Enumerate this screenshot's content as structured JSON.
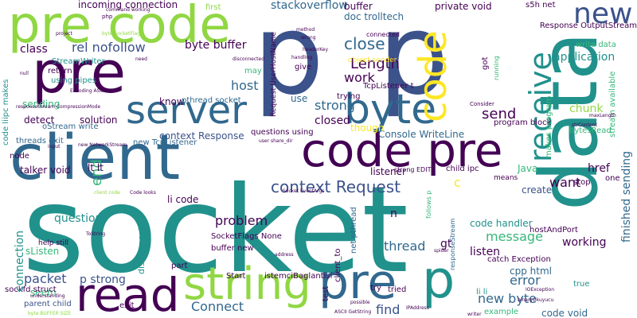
{
  "palette": {
    "dark_purple": "#440154",
    "indigo": "#3b528b",
    "blue": "#31688e",
    "teal": "#21918c",
    "green": "#35b779",
    "yellow_green": "#90d743",
    "yellow": "#fde725"
  },
  "words": [
    {
      "text": "socket",
      "color": "#21918c",
      "vertical": false
    },
    {
      "text": "p",
      "color": "#3b528b",
      "vertical": false
    },
    {
      "text": "data",
      "color": "#21918c",
      "vertical": true
    },
    {
      "text": "client",
      "color": "#31688e",
      "vertical": false
    },
    {
      "text": "code pre",
      "color": "#440154",
      "vertical": false
    },
    {
      "text": "pre code",
      "color": "#90d743",
      "vertical": false
    },
    {
      "text": "pre",
      "color": "#440154",
      "vertical": false
    },
    {
      "text": "p",
      "color": "#3b528b",
      "vertical": false
    },
    {
      "text": "server",
      "color": "#31688e",
      "vertical": false
    },
    {
      "text": "byte",
      "color": "#31688e",
      "vertical": false
    },
    {
      "text": "read",
      "color": "#440154",
      "vertical": false
    },
    {
      "text": "string",
      "color": "#90d743",
      "vertical": false
    },
    {
      "text": "pre",
      "color": "#31688e",
      "vertical": false
    },
    {
      "text": "p",
      "color": "#21918c",
      "vertical": false
    },
    {
      "text": "code",
      "color": "#fde725",
      "vertical": true
    },
    {
      "text": "new",
      "color": "#3b528b",
      "vertical": false
    },
    {
      "text": "receive",
      "color": "#21918c",
      "vertical": true
    },
    {
      "text": "context Request",
      "color": "#3b528b",
      "vertical": false
    },
    {
      "text": "close",
      "color": "#31688e",
      "vertical": false
    },
    {
      "text": "Length",
      "color": "#440154",
      "vertical": false
    },
    {
      "text": "send",
      "color": "#440154",
      "vertical": false
    },
    {
      "text": "application",
      "color": "#21918c",
      "vertical": false
    },
    {
      "text": "chunk",
      "color": "#90d743",
      "vertical": false
    },
    {
      "text": "message",
      "color": "#35b779",
      "vertical": false
    },
    {
      "text": "problem",
      "color": "#440154",
      "vertical": false
    },
    {
      "text": "Connect",
      "color": "#31688e",
      "vertical": false
    },
    {
      "text": "packet",
      "color": "#3b528b",
      "vertical": false
    },
    {
      "text": "find",
      "color": "#3b528b",
      "vertical": false
    },
    {
      "text": "work",
      "color": "#440154",
      "vertical": false
    },
    {
      "text": "strong",
      "color": "#31688e",
      "vertical": false
    },
    {
      "text": "host",
      "color": "#31688e",
      "vertical": false
    },
    {
      "text": "rel nofollow",
      "color": "#3b528b",
      "vertical": false
    },
    {
      "text": "stackoverflow",
      "color": "#31688e",
      "vertical": false
    },
    {
      "text": "incoming connection",
      "color": "#440154",
      "vertical": false
    },
    {
      "text": "buffer",
      "color": "#440154",
      "vertical": false
    },
    {
      "text": "doc trolltech",
      "color": "#31688e",
      "vertical": false
    },
    {
      "text": "private void",
      "color": "#440154",
      "vertical": false
    },
    {
      "text": "byte buffer",
      "color": "#440154",
      "vertical": false
    },
    {
      "text": "class",
      "color": "#440154",
      "vertical": false
    },
    {
      "text": "end",
      "color": "#35b779",
      "vertical": true
    },
    {
      "text": "lt lt",
      "color": "#440154",
      "vertical": false
    },
    {
      "text": "li code",
      "color": "#440154",
      "vertical": false
    },
    {
      "text": "question",
      "color": "#21918c",
      "vertical": false
    },
    {
      "text": "p strong",
      "color": "#3b528b",
      "vertical": false
    },
    {
      "text": "thread",
      "color": "#31688e",
      "vertical": false
    },
    {
      "text": "listen",
      "color": "#440154",
      "vertical": false
    },
    {
      "text": "code handler",
      "color": "#21918c",
      "vertical": false
    },
    {
      "text": "error",
      "color": "#31688e",
      "vertical": false
    },
    {
      "text": "new byte",
      "color": "#31688e",
      "vertical": false
    },
    {
      "text": "href",
      "color": "#440154",
      "vertical": false
    },
    {
      "text": "want",
      "color": "#440154",
      "vertical": false
    },
    {
      "text": "create",
      "color": "#3b528b",
      "vertical": false
    },
    {
      "text": "working",
      "color": "#440154",
      "vertical": false
    },
    {
      "text": "finished sending",
      "color": "#31688e",
      "vertical": true
    },
    {
      "text": "solution",
      "color": "#440154",
      "vertical": false
    },
    {
      "text": "detect",
      "color": "#440154",
      "vertical": false
    },
    {
      "text": "sending",
      "color": "#35b779",
      "vertical": false
    },
    {
      "text": "closed",
      "color": "#440154",
      "vertical": false
    },
    {
      "text": "Console WriteLine",
      "color": "#31688e",
      "vertical": false
    },
    {
      "text": "listener",
      "color": "#440154",
      "vertical": false
    },
    {
      "text": "Java",
      "color": "#35b779",
      "vertical": false
    },
    {
      "text": "though",
      "color": "#fde725",
      "vertical": false
    },
    {
      "text": "know",
      "color": "#440154",
      "vertical": false
    },
    {
      "text": "pthread socket",
      "color": "#31688e",
      "vertical": false
    },
    {
      "text": "use",
      "color": "#31688e",
      "vertical": false
    },
    {
      "text": "context Response",
      "color": "#3b528b",
      "vertical": false
    },
    {
      "text": "oStream write",
      "color": "#31688e",
      "vertical": false
    },
    {
      "text": "new TcpListener",
      "color": "#31688e",
      "vertical": false
    },
    {
      "text": "threads exit",
      "color": "#31688e",
      "vertical": false
    },
    {
      "text": "talker void",
      "color": "#440154",
      "vertical": false
    },
    {
      "text": "SocketFlags None",
      "color": "#440154",
      "vertical": false
    },
    {
      "text": "buffer new",
      "color": "#440154",
      "vertical": false
    },
    {
      "text": "Start",
      "color": "#440154",
      "vertical": false
    },
    {
      "text": "istemciBaglantisi",
      "color": "#440154",
      "vertical": false
    },
    {
      "text": "seem",
      "color": "#35b779",
      "vertical": false
    },
    {
      "text": "parent child",
      "color": "#3b528b",
      "vertical": false
    },
    {
      "text": "sListen",
      "color": "#35b779",
      "vertical": false
    },
    {
      "text": "sockfd struct",
      "color": "#440154",
      "vertical": false
    },
    {
      "text": "connection",
      "color": "#21918c",
      "vertical": true
    },
    {
      "text": "disconnect",
      "color": "#21918c",
      "vertical": true
    },
    {
      "text": "n",
      "color": "#440154",
      "vertical": false
    },
    {
      "text": "c",
      "color": "#fde725",
      "vertical": false
    },
    {
      "text": "gt",
      "color": "#440154",
      "vertical": false
    },
    {
      "text": "hostAndPort",
      "color": "#440154",
      "vertical": false
    },
    {
      "text": "catch Exception",
      "color": "#440154",
      "vertical": false
    },
    {
      "text": "cpp html",
      "color": "#31688e",
      "vertical": false
    },
    {
      "text": "li li",
      "color": "#21918c",
      "vertical": false
    },
    {
      "text": "code void",
      "color": "#31688e",
      "vertical": false
    },
    {
      "text": "true",
      "color": "#21918c",
      "vertical": false
    },
    {
      "text": "TcpListener t",
      "color": "#440154",
      "vertical": false
    },
    {
      "text": "trying",
      "color": "#440154",
      "vertical": false
    },
    {
      "text": "give",
      "color": "#440154",
      "vertical": false
    },
    {
      "text": "may",
      "color": "#35b779",
      "vertical": false
    },
    {
      "text": "return",
      "color": "#440154",
      "vertical": false
    },
    {
      "text": "using pipes",
      "color": "#21918c",
      "vertical": false
    },
    {
      "text": "ipc makes",
      "color": "#21918c",
      "vertical": true
    },
    {
      "text": "code li",
      "color": "#21918c",
      "vertical": true
    },
    {
      "text": "StreamWriter",
      "color": "#21918c",
      "vertical": false
    },
    {
      "text": "first",
      "color": "#90d743",
      "vertical": false
    },
    {
      "text": "node",
      "color": "#440154",
      "vertical": false
    },
    {
      "text": "s5h net",
      "color": "#440154",
      "vertical": false
    },
    {
      "text": "Response OutputStream",
      "color": "#440154",
      "vertical": false
    },
    {
      "text": "write data",
      "color": "#35b779",
      "vertical": false
    },
    {
      "text": "bytesRead",
      "color": "#35b779",
      "vertical": false
    },
    {
      "text": "stream available",
      "color": "#35b779",
      "vertical": true
    },
    {
      "text": "questions using",
      "color": "#440154",
      "vertical": false
    },
    {
      "text": "program block",
      "color": "#440154",
      "vertical": false
    },
    {
      "text": "object sender",
      "color": "#fde725",
      "vertical": false
    },
    {
      "text": "strong EDIT",
      "color": "#440154",
      "vertical": false
    },
    {
      "text": "child ipc",
      "color": "#440154",
      "vertical": false
    },
    {
      "text": "net pthread",
      "color": "#31688e",
      "vertical": true
    },
    {
      "text": "client_to",
      "color": "#440154",
      "vertical": true
    },
    {
      "text": "follows p",
      "color": "#35b779",
      "vertical": true
    },
    {
      "text": "Request UserHostName",
      "color": "#440154",
      "vertical": true
    },
    {
      "text": "running",
      "color": "#35b779",
      "vertical": true
    },
    {
      "text": "stop",
      "color": "#440154",
      "vertical": false
    },
    {
      "text": "one",
      "color": "#440154",
      "vertical": false
    },
    {
      "text": "test",
      "color": "#440154",
      "vertical": true
    },
    {
      "text": "try",
      "color": "#440154",
      "vertical": false
    },
    {
      "text": "tried",
      "color": "#440154",
      "vertical": false
    },
    {
      "text": "example",
      "color": "#35b779",
      "vertical": false
    },
    {
      "text": "part",
      "color": "#440154",
      "vertical": false
    },
    {
      "text": "exit",
      "color": "#440154",
      "vertical": false
    },
    {
      "text": "help still",
      "color": "#440154",
      "vertical": false
    },
    {
      "text": "responseStream",
      "color": "#31688e",
      "vertical": true
    },
    {
      "text": "means",
      "color": "#440154",
      "vertical": false
    },
    {
      "text": "got",
      "color": "#440154",
      "vertical": true
    },
    {
      "text": "connected",
      "color": "#440154",
      "vertical": false
    },
    {
      "text": "Consider",
      "color": "#440154",
      "vertical": false
    },
    {
      "text": "makes program",
      "color": "#35b779",
      "vertical": true
    },
    {
      "text": "php",
      "color": "#440154",
      "vertical": false
    },
    {
      "text": "command working",
      "color": "#440154",
      "vertical": false
    },
    {
      "text": "project",
      "color": "#440154",
      "vertical": false
    },
    {
      "text": "byte SocketFlags",
      "color": "#90d743",
      "vertical": false
    },
    {
      "text": "method",
      "color": "#440154",
      "vertical": false
    },
    {
      "text": "wrong",
      "color": "#440154",
      "vertical": false
    },
    {
      "text": "headerKey",
      "color": "#440154",
      "vertical": false
    },
    {
      "text": "handling",
      "color": "#440154",
      "vertical": false
    },
    {
      "text": "disconnected",
      "color": "#440154",
      "vertical": false
    },
    {
      "text": "need",
      "color": "#440154",
      "vertical": false
    },
    {
      "text": "null",
      "color": "#440154",
      "vertical": false
    },
    {
      "text": "Encoding ASCII",
      "color": "#440154",
      "vertical": false
    },
    {
      "text": "responseStream CompressionMode",
      "color": "#440154",
      "vertical": false
    },
    {
      "text": "input",
      "color": "#440154",
      "vertical": false
    },
    {
      "text": "new NetworkStream",
      "color": "#440154",
      "vertical": false
    },
    {
      "text": "ToString",
      "color": "#440154",
      "vertical": false
    },
    {
      "text": "address",
      "color": "#440154",
      "vertical": false
    },
    {
      "text": "Code looks",
      "color": "#440154",
      "vertical": false
    },
    {
      "text": "client code",
      "color": "#90d743",
      "vertical": false
    },
    {
      "text": "IPAddress",
      "color": "#440154",
      "vertical": false
    },
    {
      "text": "IOException",
      "color": "#440154",
      "vertical": false
    },
    {
      "text": "maxLength",
      "color": "#440154",
      "vertical": false
    },
    {
      "text": "strContent",
      "color": "#440154",
      "vertical": false
    },
    {
      "text": "binaryOkuyucu",
      "color": "#440154",
      "vertical": false
    },
    {
      "text": "ASCII GetString",
      "color": "#440154",
      "vertical": false
    },
    {
      "text": "byte BUFFER SIZE",
      "color": "#90d743",
      "vertical": false
    },
    {
      "text": "writer",
      "color": "#440154",
      "vertical": false
    },
    {
      "text": "possible",
      "color": "#440154",
      "vertical": false
    },
    {
      "text": "Socket EventArgs",
      "color": "#440154",
      "vertical": false
    },
    {
      "text": "user share_dir",
      "color": "#440154",
      "vertical": false
    },
    {
      "text": "spider",
      "color": "#440154",
      "vertical": false
    },
    {
      "text": "understanding",
      "color": "#440154",
      "vertical": false
    }
  ]
}
